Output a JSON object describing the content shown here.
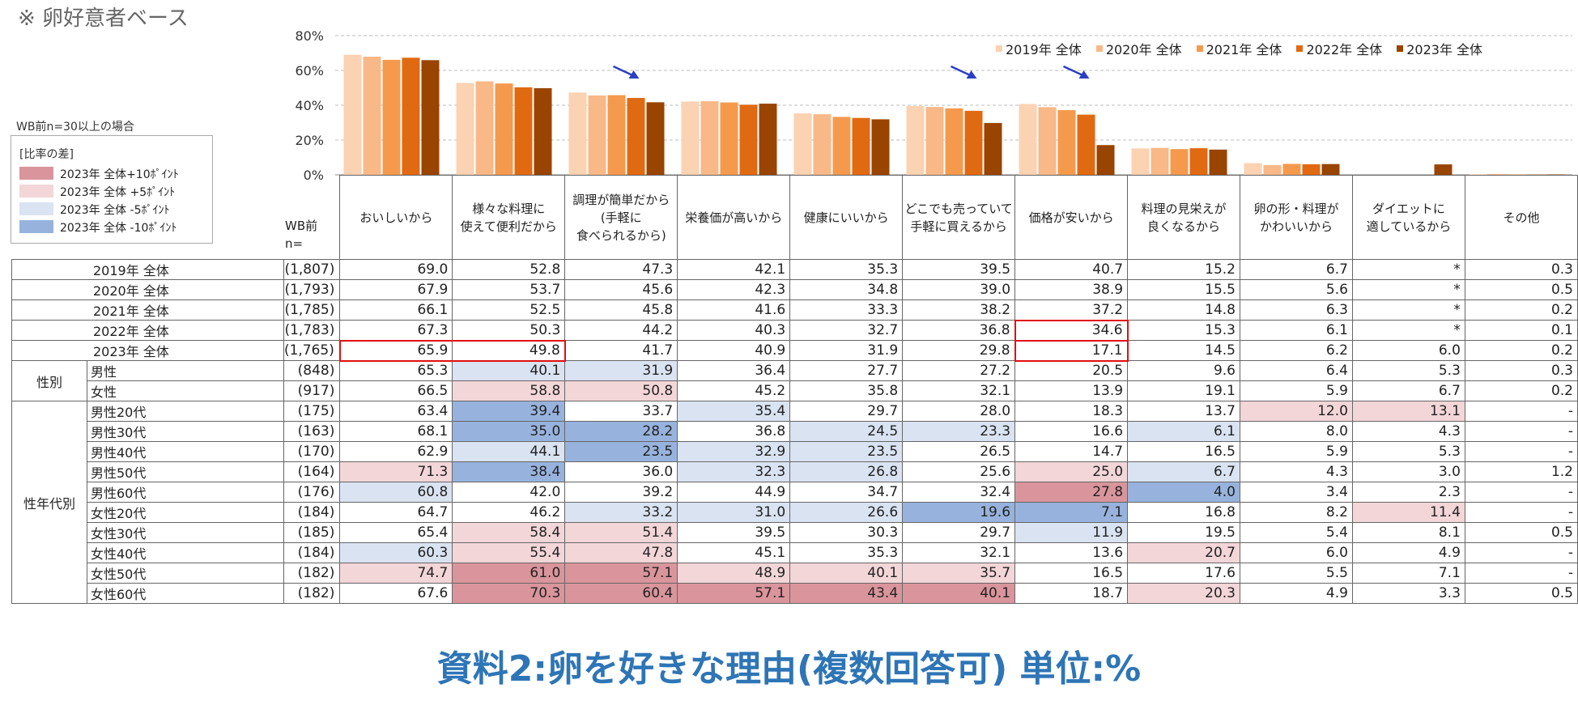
{
  "note": "※ 卵好意者ベース",
  "wb_note": "WB前n=30以上の場合",
  "diff_legend": {
    "title": "[比率の差]",
    "items": [
      {
        "label": "2023年 全体+10ﾎﾟｲﾝﾄ",
        "color": "#d9959b"
      },
      {
        "label": "2023年 全体 +5ﾎﾟｲﾝﾄ",
        "color": "#f3d6d8"
      },
      {
        "label": "2023年 全体 -5ﾎﾟｲﾝﾄ",
        "color": "#dae3f2"
      },
      {
        "label": "2023年 全体 -10ﾎﾟｲﾝﾄ",
        "color": "#97b3dd"
      }
    ]
  },
  "wb_header": [
    "WB前",
    "n="
  ],
  "chart_data": {
    "type": "bar",
    "ylim": [
      0,
      80
    ],
    "yticks": [
      "0%",
      "20%",
      "40%",
      "60%",
      "80%"
    ],
    "grid": true,
    "legend_position": "top-right",
    "categories": [
      "おいしいから",
      "様々な料理に\n使えて便利だから",
      "調理が簡単だから\n(手軽に\n食べられるから)",
      "栄養価が高いから",
      "健康にいいから",
      "どこでも売っていて\n手軽に買えるから",
      "価格が安いから",
      "料理の見栄えが\n良くなるから",
      "卵の形・料理が\nかわいいから",
      "ダイエットに\n適しているから",
      "その他"
    ],
    "series": [
      {
        "name": "2019年 全体",
        "color": "#fbd2b2",
        "values": [
          69.0,
          52.8,
          47.3,
          42.1,
          35.3,
          39.5,
          40.7,
          15.2,
          6.7,
          null,
          0.3
        ]
      },
      {
        "name": "2020年 全体",
        "color": "#f9b888",
        "values": [
          67.9,
          53.7,
          45.6,
          42.3,
          34.8,
          39.0,
          38.9,
          15.5,
          5.6,
          null,
          0.5
        ]
      },
      {
        "name": "2021年 全体",
        "color": "#f59a4d",
        "values": [
          66.1,
          52.5,
          45.8,
          41.6,
          33.3,
          38.2,
          37.2,
          14.8,
          6.3,
          null,
          0.2
        ]
      },
      {
        "name": "2022年 全体",
        "color": "#e06a12",
        "values": [
          67.3,
          50.3,
          44.2,
          40.3,
          32.7,
          36.8,
          34.6,
          15.3,
          6.1,
          null,
          0.1
        ]
      },
      {
        "name": "2023年 全体",
        "color": "#994400",
        "values": [
          65.9,
          49.8,
          41.7,
          40.9,
          31.9,
          29.8,
          17.1,
          14.5,
          6.2,
          6.0,
          0.2
        ]
      }
    ],
    "down_arrows_at_categories": [
      2,
      5,
      6
    ]
  },
  "table": {
    "rows": [
      {
        "group": "",
        "label": "2019年 全体",
        "n": "(1,807)",
        "values": [
          "69.0",
          "52.8",
          "47.3",
          "42.1",
          "35.3",
          "39.5",
          "40.7",
          "15.2",
          "6.7",
          "*",
          "0.3"
        ],
        "shade": [
          0,
          0,
          0,
          0,
          0,
          0,
          0,
          0,
          0,
          0,
          0
        ]
      },
      {
        "group": "",
        "label": "2020年 全体",
        "n": "(1,793)",
        "values": [
          "67.9",
          "53.7",
          "45.6",
          "42.3",
          "34.8",
          "39.0",
          "38.9",
          "15.5",
          "5.6",
          "*",
          "0.5"
        ],
        "shade": [
          0,
          0,
          0,
          0,
          0,
          0,
          0,
          0,
          0,
          0,
          0
        ]
      },
      {
        "group": "",
        "label": "2021年 全体",
        "n": "(1,785)",
        "values": [
          "66.1",
          "52.5",
          "45.8",
          "41.6",
          "33.3",
          "38.2",
          "37.2",
          "14.8",
          "6.3",
          "*",
          "0.2"
        ],
        "shade": [
          0,
          0,
          0,
          0,
          0,
          0,
          0,
          0,
          0,
          0,
          0
        ]
      },
      {
        "group": "",
        "label": "2022年 全体",
        "n": "(1,783)",
        "values": [
          "67.3",
          "50.3",
          "44.2",
          "40.3",
          "32.7",
          "36.8",
          "34.6",
          "15.3",
          "6.1",
          "*",
          "0.1"
        ],
        "shade": [
          0,
          0,
          0,
          0,
          0,
          0,
          0,
          0,
          0,
          0,
          0
        ]
      },
      {
        "group": "",
        "label": "2023年 全体",
        "n": "(1,765)",
        "values": [
          "65.9",
          "49.8",
          "41.7",
          "40.9",
          "31.9",
          "29.8",
          "17.1",
          "14.5",
          "6.2",
          "6.0",
          "0.2"
        ],
        "shade": [
          0,
          0,
          0,
          0,
          0,
          0,
          0,
          0,
          0,
          0,
          0
        ]
      },
      {
        "group": "性別",
        "label": "男性",
        "n": "(848)",
        "values": [
          "65.3",
          "40.1",
          "31.9",
          "36.4",
          "27.7",
          "27.2",
          "20.5",
          "9.6",
          "6.4",
          "5.3",
          "0.3"
        ],
        "shade": [
          0,
          -1,
          -1,
          0,
          0,
          0,
          0,
          0,
          0,
          0,
          0
        ]
      },
      {
        "group": "性別",
        "label": "女性",
        "n": "(917)",
        "values": [
          "66.5",
          "58.8",
          "50.8",
          "45.2",
          "35.8",
          "32.1",
          "13.9",
          "19.1",
          "5.9",
          "6.7",
          "0.2"
        ],
        "shade": [
          0,
          1,
          1,
          0,
          0,
          0,
          0,
          0,
          0,
          0,
          0
        ]
      },
      {
        "group": "性年代別",
        "label": "男性20代",
        "n": "(175)",
        "values": [
          "63.4",
          "39.4",
          "33.7",
          "35.4",
          "29.7",
          "28.0",
          "18.3",
          "13.7",
          "12.0",
          "13.1",
          "-"
        ],
        "shade": [
          0,
          -2,
          0,
          -1,
          0,
          0,
          0,
          0,
          1,
          1,
          0
        ]
      },
      {
        "group": "性年代別",
        "label": "男性30代",
        "n": "(163)",
        "values": [
          "68.1",
          "35.0",
          "28.2",
          "36.8",
          "24.5",
          "23.3",
          "16.6",
          "6.1",
          "8.0",
          "4.3",
          "-"
        ],
        "shade": [
          0,
          -2,
          -2,
          0,
          -1,
          -1,
          0,
          -1,
          0,
          0,
          0
        ]
      },
      {
        "group": "性年代別",
        "label": "男性40代",
        "n": "(170)",
        "values": [
          "62.9",
          "44.1",
          "23.5",
          "32.9",
          "23.5",
          "26.5",
          "14.7",
          "16.5",
          "5.9",
          "5.3",
          "-"
        ],
        "shade": [
          0,
          -1,
          -2,
          -1,
          -1,
          0,
          0,
          0,
          0,
          0,
          0
        ]
      },
      {
        "group": "性年代別",
        "label": "男性50代",
        "n": "(164)",
        "values": [
          "71.3",
          "38.4",
          "36.0",
          "32.3",
          "26.8",
          "25.6",
          "25.0",
          "6.7",
          "4.3",
          "3.0",
          "1.2"
        ],
        "shade": [
          1,
          -2,
          0,
          -1,
          -1,
          0,
          1,
          -1,
          0,
          0,
          0
        ]
      },
      {
        "group": "性年代別",
        "label": "男性60代",
        "n": "(176)",
        "values": [
          "60.8",
          "42.0",
          "39.2",
          "44.9",
          "34.7",
          "32.4",
          "27.8",
          "4.0",
          "3.4",
          "2.3",
          "-"
        ],
        "shade": [
          -1,
          0,
          0,
          0,
          0,
          0,
          2,
          -2,
          0,
          0,
          0
        ]
      },
      {
        "group": "性年代別",
        "label": "女性20代",
        "n": "(184)",
        "values": [
          "64.7",
          "46.2",
          "33.2",
          "31.0",
          "26.6",
          "19.6",
          "7.1",
          "16.8",
          "8.2",
          "11.4",
          "-"
        ],
        "shade": [
          0,
          0,
          -1,
          -1,
          -1,
          -2,
          -2,
          0,
          0,
          1,
          0
        ]
      },
      {
        "group": "性年代別",
        "label": "女性30代",
        "n": "(185)",
        "values": [
          "65.4",
          "58.4",
          "51.4",
          "39.5",
          "30.3",
          "29.7",
          "11.9",
          "19.5",
          "5.4",
          "8.1",
          "0.5"
        ],
        "shade": [
          0,
          1,
          1,
          0,
          0,
          0,
          -1,
          0,
          0,
          0,
          0
        ]
      },
      {
        "group": "性年代別",
        "label": "女性40代",
        "n": "(184)",
        "values": [
          "60.3",
          "55.4",
          "47.8",
          "45.1",
          "35.3",
          "32.1",
          "13.6",
          "20.7",
          "6.0",
          "4.9",
          "-"
        ],
        "shade": [
          -1,
          1,
          1,
          0,
          0,
          0,
          0,
          1,
          0,
          0,
          0
        ]
      },
      {
        "group": "性年代別",
        "label": "女性50代",
        "n": "(182)",
        "values": [
          "74.7",
          "61.0",
          "57.1",
          "48.9",
          "40.1",
          "35.7",
          "16.5",
          "17.6",
          "5.5",
          "7.1",
          "-"
        ],
        "shade": [
          1,
          2,
          2,
          1,
          1,
          1,
          0,
          0,
          0,
          0,
          0
        ]
      },
      {
        "group": "性年代別",
        "label": "女性60代",
        "n": "(182)",
        "values": [
          "67.6",
          "70.3",
          "60.4",
          "57.1",
          "43.4",
          "40.1",
          "18.7",
          "20.3",
          "4.9",
          "3.3",
          "0.5"
        ],
        "shade": [
          0,
          2,
          2,
          2,
          2,
          2,
          0,
          1,
          0,
          0,
          0
        ]
      }
    ],
    "highlights": [
      {
        "row": 4,
        "col_start": 0,
        "col_end": 1
      },
      {
        "row": 3,
        "col_start": 6,
        "col_end": 6
      },
      {
        "row": 4,
        "col_start": 6,
        "col_end": 6
      }
    ]
  },
  "caption": "資料2:卵を好きな理由(複数回答可) 単位:%"
}
